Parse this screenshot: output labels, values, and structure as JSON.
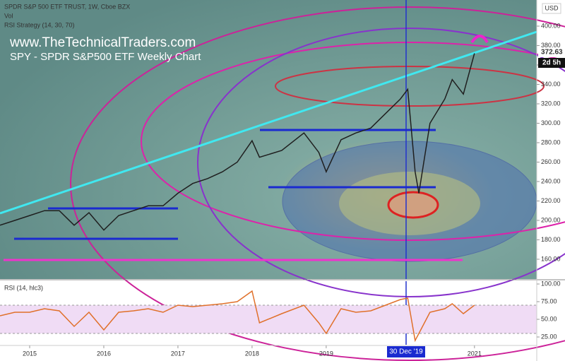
{
  "chart_data": [
    {
      "type": "line",
      "title": "SPDR S&P 500 ETF TRUST, 1W, Cboe BZX",
      "subtitle": "Vol",
      "indicator": "RSI Strategy (14, 30, 70)",
      "annotations": [
        "www.TheTechnicalTraders.com",
        "SPY - SPDR S&P500 ETF Weekly Chart"
      ],
      "currency": "USD",
      "last_price": "372.63",
      "countdown": "2d 5h",
      "x": [
        2014.6,
        2014.8,
        2015.0,
        2015.2,
        2015.4,
        2015.6,
        2015.8,
        2016.0,
        2016.2,
        2016.4,
        2016.6,
        2016.8,
        2017.0,
        2017.2,
        2017.4,
        2017.6,
        2017.8,
        2018.0,
        2018.1,
        2018.4,
        2018.7,
        2018.9,
        2019.0,
        2019.2,
        2019.4,
        2019.6,
        2019.8,
        2020.0,
        2020.1,
        2020.2,
        2020.25,
        2020.4,
        2020.6,
        2020.7,
        2020.85,
        2021.0
      ],
      "series": [
        {
          "name": "SPY",
          "color": "#1f1f1f",
          "values": [
            195,
            200,
            205,
            210,
            210,
            195,
            208,
            190,
            205,
            210,
            215,
            215,
            228,
            238,
            243,
            250,
            260,
            282,
            265,
            272,
            290,
            270,
            250,
            283,
            290,
            295,
            310,
            325,
            335,
            250,
            228,
            300,
            325,
            345,
            330,
            372
          ]
        }
      ],
      "xlim": [
        2014.6,
        2021.84
      ],
      "ylim": [
        139.6,
        426.9
      ],
      "yticks": [
        {
          "value": 160,
          "label": "160.00"
        },
        {
          "value": 180,
          "label": "180.00"
        },
        {
          "value": 200,
          "label": "200.00"
        },
        {
          "value": 220,
          "label": "220.00"
        },
        {
          "value": 240,
          "label": "240.00"
        },
        {
          "value": 260,
          "label": "260.00"
        },
        {
          "value": 280,
          "label": "280.00"
        },
        {
          "value": 300,
          "label": "300.00"
        },
        {
          "value": 320,
          "label": "320.00"
        },
        {
          "value": 340,
          "label": "340.00"
        },
        {
          "value": 360,
          "label": "360.00"
        },
        {
          "value": 380,
          "label": "380.00"
        },
        {
          "value": 400,
          "label": "400.00"
        }
      ]
    },
    {
      "type": "line",
      "title": "RSI (14, hlc3)",
      "crosshair_label": "30 Dec '19",
      "x": [
        2014.6,
        2014.8,
        2015.0,
        2015.2,
        2015.4,
        2015.6,
        2015.8,
        2016.0,
        2016.2,
        2016.4,
        2016.6,
        2016.8,
        2017.0,
        2017.2,
        2017.4,
        2017.6,
        2017.8,
        2018.0,
        2018.1,
        2018.4,
        2018.7,
        2018.9,
        2019.0,
        2019.2,
        2019.4,
        2019.6,
        2019.8,
        2020.0,
        2020.1,
        2020.2,
        2020.25,
        2020.4,
        2020.6,
        2020.7,
        2020.85,
        2021.0
      ],
      "series": [
        {
          "name": "RSI",
          "color": "#e0702a",
          "values": [
            55,
            60,
            60,
            65,
            62,
            40,
            60,
            35,
            60,
            62,
            65,
            60,
            70,
            68,
            70,
            72,
            75,
            90,
            45,
            58,
            70,
            45,
            30,
            65,
            60,
            62,
            70,
            78,
            80,
            20,
            30,
            60,
            65,
            72,
            58,
            70
          ]
        }
      ],
      "xlim": [
        2014.6,
        2021.84
      ],
      "ylim": [
        14,
        104
      ],
      "yticks": [
        {
          "value": 25,
          "label": "25.00"
        },
        {
          "value": 50,
          "label": "50.00"
        },
        {
          "value": 75,
          "label": "75.00"
        },
        {
          "value": 100,
          "label": "100.00"
        }
      ],
      "xticks": [
        2015,
        2016,
        2017,
        2018,
        2019,
        2021
      ]
    }
  ]
}
